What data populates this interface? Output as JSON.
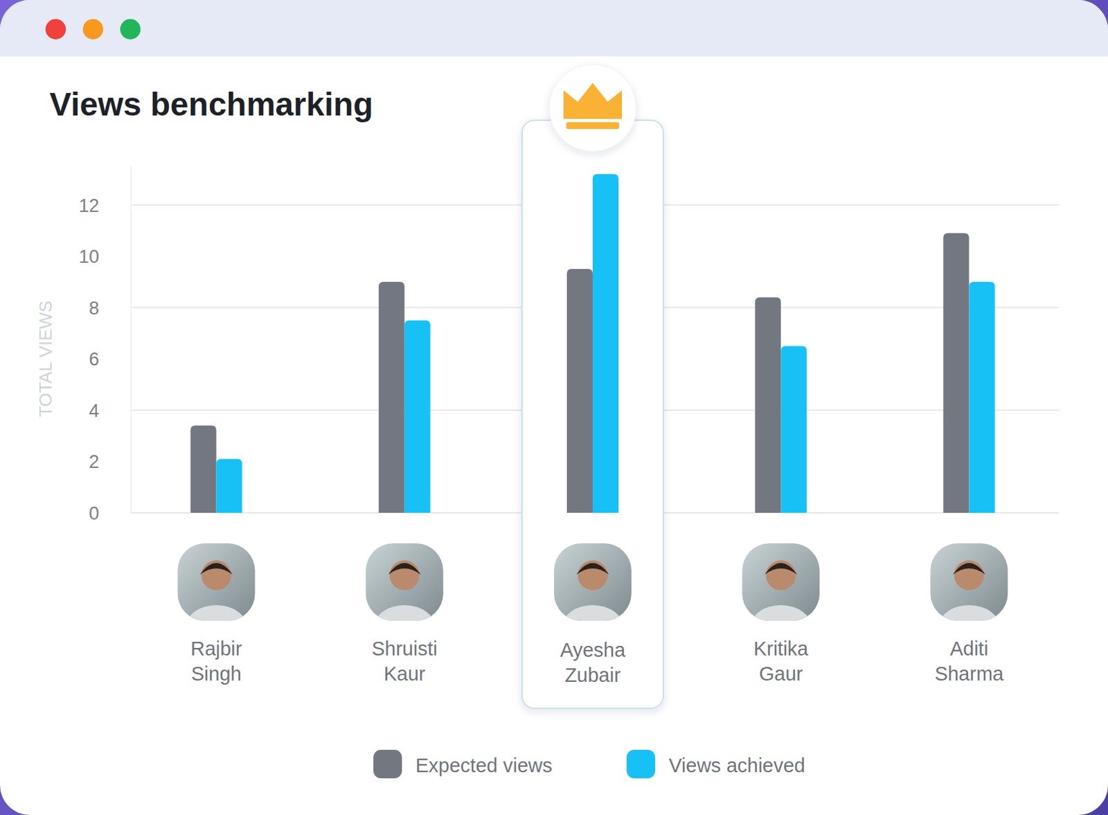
{
  "chart_data": {
    "type": "bar",
    "title": "Views benchmarking",
    "y_label": "TOTAL VIEWS",
    "categories": [
      "Rajbir Singh",
      "Shruisti Kaur",
      "Ayesha Zubair",
      "Kritika Gaur",
      "Aditi Sharma"
    ],
    "series": [
      {
        "name": "Expected views",
        "color": "#737880",
        "values": [
          3.4,
          9.0,
          9.5,
          8.4,
          10.9
        ]
      },
      {
        "name": "Views achieved",
        "color": "#17c1f6",
        "values": [
          2.1,
          7.5,
          13.2,
          6.5,
          9.0
        ]
      }
    ],
    "ylim": [
      0,
      13.5
    ],
    "yticks": [
      0,
      2,
      4,
      6,
      8,
      10,
      12
    ],
    "grid": true,
    "legend": "bottom"
  }
}
